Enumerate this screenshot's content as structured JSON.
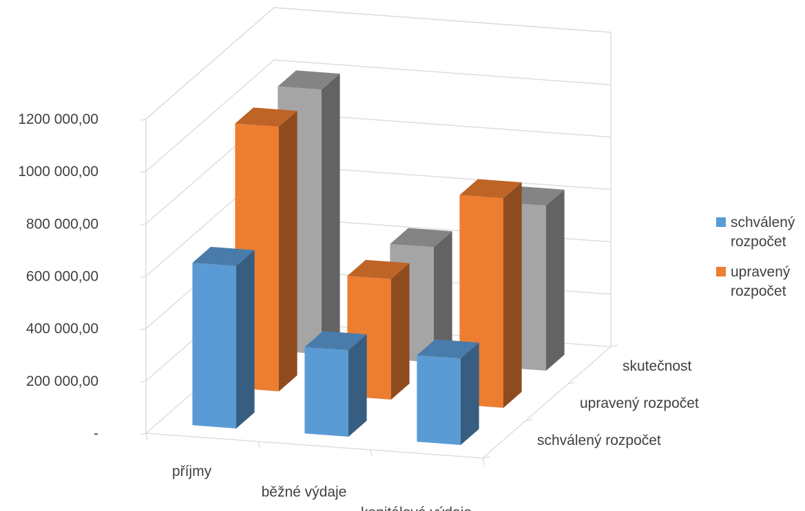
{
  "chart_data": {
    "type": "bar",
    "title": "",
    "xlabel": "",
    "ylabel": "",
    "categories": [
      "příjmy",
      "běžné výdaje",
      "kapitálové výdaje"
    ],
    "depth_labels": [
      "skutečnost",
      "upravený rozpočet",
      "schválený rozpočet"
    ],
    "series": [
      {
        "name": "schválený rozpočet",
        "legend_lines": [
          "schválený",
          "rozpočet"
        ],
        "color": "#5B9BD5",
        "values": [
          620000,
          330000,
          330000
        ]
      },
      {
        "name": "upravený rozpočet",
        "legend_lines": [
          "upravený",
          "rozpočet"
        ],
        "color": "#ED7D31",
        "values": [
          1010000,
          460000,
          800000
        ]
      },
      {
        "name": "skutečnost",
        "color": "#A5A5A5",
        "values": [
          1010000,
          440000,
          630000
        ]
      }
    ],
    "ylim": [
      0,
      1200000
    ],
    "yticks": [
      {
        "value": 0,
        "label": "-"
      },
      {
        "value": 200000,
        "label": "200 000,00"
      },
      {
        "value": 400000,
        "label": "400 000,00"
      },
      {
        "value": 600000,
        "label": "600 000,00"
      },
      {
        "value": 800000,
        "label": "800 000,00"
      },
      {
        "value": 1000000,
        "label": "1000 000,00"
      },
      {
        "value": 1200000,
        "label": "1200 000,00"
      }
    ],
    "grid": true,
    "legend": "right"
  }
}
